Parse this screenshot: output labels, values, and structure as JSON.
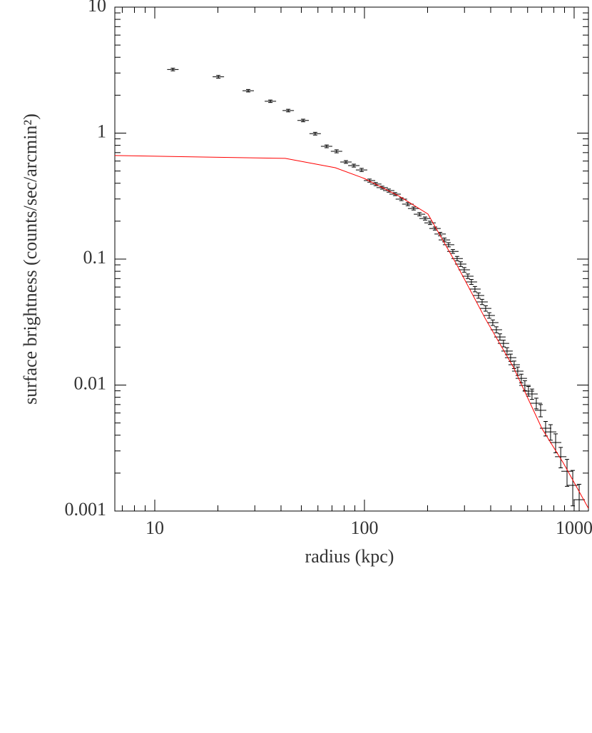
{
  "chart_data": {
    "type": "scatter",
    "xlabel": "radius (kpc)",
    "ylabel": "surface brightness (counts/sec/arcmin²)",
    "xlog": true,
    "ylog": true,
    "xlim": [
      6.45,
      1170
    ],
    "ylim": [
      0.001,
      10
    ],
    "xticks": [
      10,
      100,
      1000
    ],
    "yticks": [
      0.001,
      0.01,
      0.1,
      1,
      10
    ],
    "xminorticks": [
      7,
      8,
      9,
      20,
      30,
      40,
      50,
      60,
      70,
      80,
      90,
      200,
      300,
      400,
      500,
      600,
      700,
      800,
      900
    ],
    "yminorticks": [
      0.002,
      0.003,
      0.004,
      0.005,
      0.006,
      0.007,
      0.008,
      0.009,
      0.02,
      0.03,
      0.04,
      0.05,
      0.06,
      0.07,
      0.08,
      0.09,
      0.2,
      0.3,
      0.4,
      0.5,
      0.6,
      0.7,
      0.8,
      0.9,
      2,
      3,
      4,
      5,
      6,
      7,
      8,
      9
    ],
    "series": [
      {
        "type": "errorbar",
        "color": "#000000",
        "x": [
          12.2,
          20.1,
          27.9,
          35.6,
          43.3,
          51,
          58.2,
          66,
          73.6,
          81.6,
          89,
          96.9,
          105.7,
          113.2,
          121.5,
          130.5,
          140,
          150,
          161,
          171.6,
          183,
          194.6,
          205.5,
          217,
          229.6,
          240.5,
          251.9,
          264,
          276.7,
          287.7,
          299.2,
          311.2,
          323.6,
          336.5,
          350,
          364,
          378.5,
          393.6,
          409.3,
          425.7,
          442.7,
          460.3,
          478.7,
          497.8,
          517.6,
          538.3,
          559.8,
          582.2,
          605.4,
          629.6,
          660,
          692,
          731,
          772,
          816,
          863,
          925,
          985,
          1057
        ],
        "values": [
          3.2,
          2.8,
          2.17,
          1.79,
          1.51,
          1.26,
          0.99,
          0.785,
          0.717,
          0.59,
          0.552,
          0.51,
          0.42,
          0.394,
          0.369,
          0.35,
          0.328,
          0.299,
          0.273,
          0.252,
          0.227,
          0.21,
          0.194,
          0.175,
          0.158,
          0.142,
          0.13,
          0.115,
          0.101,
          0.0913,
          0.0822,
          0.0731,
          0.0659,
          0.0578,
          0.0514,
          0.0457,
          0.0406,
          0.0357,
          0.0313,
          0.0275,
          0.0241,
          0.0214,
          0.0186,
          0.0165,
          0.0145,
          0.0129,
          0.0113,
          0.00993,
          0.00895,
          0.00849,
          0.00717,
          0.0063,
          0.00454,
          0.00425,
          0.0035,
          0.0027,
          0.00207,
          0.0016,
          0.00123
        ],
        "errors": [
          0.08,
          0.07,
          0.05,
          0.04,
          0.035,
          0.03,
          0.025,
          0.02,
          0.02,
          0.015,
          0.015,
          0.015,
          0.012,
          0.011,
          0.01,
          0.01,
          0.009,
          0.008,
          0.008,
          0.007,
          0.007,
          0.006,
          0.006,
          0.005,
          0.005,
          0.005,
          0.005,
          0.004,
          0.004,
          0.004,
          0.0035,
          0.003,
          0.003,
          0.0028,
          0.0025,
          0.0022,
          0.002,
          0.0018,
          0.0016,
          0.0015,
          0.0014,
          0.0013,
          0.0012,
          0.0011,
          0.001,
          0.001,
          0.0009,
          0.0009,
          0.0008,
          0.0008,
          0.0007,
          0.0007,
          0.0006,
          0.0006,
          0.0006,
          0.0005,
          0.0005,
          0.0005,
          0.0004
        ]
      },
      {
        "type": "line",
        "color": "#ff0000",
        "x": [
          6.45,
          41.9,
          72.6,
          100,
          146.8,
          200.8,
          274.8,
          375.8,
          514,
          703,
          889,
          1170
        ],
        "values": [
          0.664,
          0.63,
          0.531,
          0.436,
          0.315,
          0.228,
          0.091,
          0.034,
          0.0138,
          0.0045,
          0.0024,
          0.00105
        ]
      }
    ]
  }
}
